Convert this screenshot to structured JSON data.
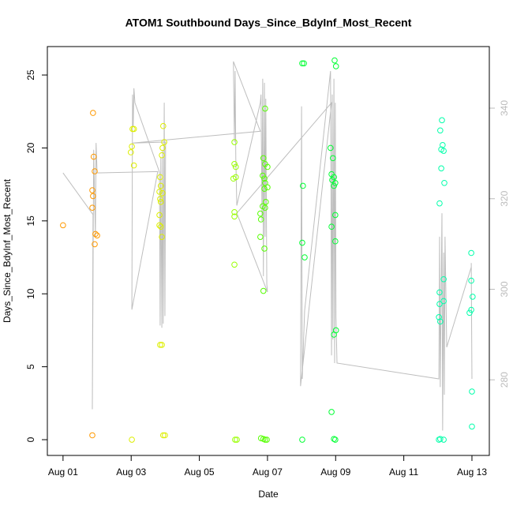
{
  "chart_data": {
    "type": "scatter",
    "title": "ATOM1 Southbound Days_Since_BdyInf_Most_Recent",
    "xlabel": "Date",
    "ylabel": "Days_Since_BdyInf_Most_Recent",
    "xlim": [
      -0.46,
      12.51
    ],
    "ylim": [
      -1.08,
      26.95
    ],
    "y2lim": [
      263.3,
      353.6
    ],
    "xticks": [
      {
        "value": 0,
        "label": "Aug 01"
      },
      {
        "value": 2,
        "label": "Aug 03"
      },
      {
        "value": 4,
        "label": "Aug 05"
      },
      {
        "value": 6,
        "label": "Aug 07"
      },
      {
        "value": 8,
        "label": "Aug 09"
      },
      {
        "value": 10,
        "label": "Aug 11"
      },
      {
        "value": 12,
        "label": "Aug 13"
      }
    ],
    "yticks": [
      0,
      5,
      10,
      15,
      20,
      25
    ],
    "y2ticks": [
      280,
      300,
      320,
      340
    ],
    "series": [
      {
        "color": "#FF9900",
        "x": [
          0,
          0.88,
          0.9,
          0.86,
          0.88,
          0.86,
          0.93,
          0.95,
          1.0,
          0.93,
          0.86
        ],
        "values": [
          14.7,
          22.4,
          19.4,
          17.1,
          16.7,
          15.9,
          18.4,
          14.1,
          14.0,
          13.4,
          0.3
        ]
      },
      {
        "color": "#DDEE00",
        "x": [
          2.04,
          2.08,
          2.02,
          1.99,
          2.08,
          2.02,
          2.94,
          2.97,
          2.92,
          2.9,
          2.85,
          2.87,
          2.83,
          2.92,
          2.85,
          2.87,
          2.83,
          2.83,
          2.87,
          2.9,
          2.85,
          2.9,
          2.94,
          2.99
        ],
        "values": [
          21.3,
          21.3,
          20.1,
          19.7,
          18.8,
          0.0,
          21.5,
          20.4,
          20.0,
          19.5,
          18.0,
          17.4,
          17.0,
          16.9,
          16.5,
          16.3,
          15.4,
          14.7,
          14.6,
          13.9,
          6.5,
          6.5,
          0.3,
          0.3
        ]
      },
      {
        "color": "#99FF00",
        "x": [
          5.03,
          5.03,
          5.07,
          5.0,
          5.07,
          5.03,
          5.03,
          5.03,
          5.05,
          5.1
        ],
        "values": [
          20.4,
          18.9,
          18.7,
          17.9,
          18.0,
          15.6,
          15.3,
          12.0,
          0.0,
          0.0
        ]
      },
      {
        "color": "#55FF00",
        "x": [
          5.93,
          5.88,
          5.93,
          6.0,
          5.86,
          5.91,
          5.93,
          6.0,
          5.91,
          5.95,
          5.86,
          5.93,
          5.79,
          5.81,
          5.79,
          5.91,
          5.88,
          5.81,
          5.88,
          5.93,
          5.98
        ],
        "values": [
          22.7,
          19.3,
          18.9,
          18.7,
          18.1,
          17.9,
          17.6,
          17.3,
          17.2,
          16.3,
          16.0,
          15.9,
          15.5,
          15.1,
          13.9,
          13.1,
          10.2,
          0.1,
          0.05,
          0.0,
          0.0
        ]
      },
      {
        "color": "#00FF33",
        "x": [
          7.02,
          7.07,
          7.04,
          7.02,
          7.09,
          7.02,
          7.97,
          8.01,
          7.85,
          7.92,
          7.88,
          7.95,
          7.9,
          7.99,
          7.95,
          7.99,
          7.88,
          7.99,
          8.01,
          7.95,
          7.88,
          7.95,
          7.99
        ],
        "values": [
          25.8,
          25.8,
          17.4,
          13.5,
          12.5,
          0.0,
          26.0,
          25.6,
          20.0,
          19.3,
          18.2,
          18.0,
          17.8,
          17.6,
          17.4,
          15.4,
          14.6,
          13.6,
          7.5,
          7.2,
          1.9,
          0.05,
          0.0
        ]
      },
      {
        "color": "#00FFAA",
        "x": [
          11.12,
          11.07,
          11.14,
          11.1,
          11.17,
          11.1,
          11.19,
          11.05,
          11.05,
          11.17,
          11.05,
          11.03,
          11.07,
          11.17,
          11.03,
          11.07,
          11.17,
          11.98,
          11.98,
          12.02,
          11.98,
          11.93,
          12.0,
          12.0
        ],
        "values": [
          21.9,
          21.2,
          20.2,
          19.9,
          19.8,
          18.6,
          17.6,
          16.2,
          10.1,
          9.5,
          9.3,
          8.4,
          8.1,
          11.0,
          0.0,
          0.05,
          0.0,
          12.8,
          10.9,
          9.8,
          8.9,
          8.7,
          3.3,
          0.9
        ]
      },
      {
        "type": "line",
        "axis": "y2",
        "color": "#BEBEBE",
        "x": [
          0.0,
          0.88,
          0.86,
          0.9,
          0.95,
          0.97,
          1.0,
          2.78,
          2.02,
          2.04,
          2.06,
          2.08,
          2.11,
          2.83,
          2.85,
          2.87,
          2.9,
          2.92,
          2.94,
          2.97,
          2.99,
          3.01,
          2.04,
          5.79,
          5.0,
          5.03,
          5.05,
          5.07,
          5.1,
          5.79,
          5.81,
          5.84,
          5.86,
          5.88,
          5.91,
          5.93,
          5.95,
          5.98,
          6.0,
          5.1,
          7.88,
          6.97,
          7.0,
          7.02,
          7.09,
          7.85,
          7.88,
          7.9,
          7.92,
          7.95,
          7.97,
          7.99,
          8.01,
          8.04,
          11.03,
          11.05,
          11.07,
          11.12,
          11.14,
          11.17,
          11.19,
          11.21,
          11.26,
          11.98,
          12.0,
          11.98
        ],
        "values": [
          325.7,
          316.5,
          273.5,
          330.8,
          311.6,
          332.3,
          325.7,
          326.0,
          295.5,
          343.0,
          336.0,
          344.4,
          341.2,
          325.9,
          292.0,
          329.0,
          291.5,
          330.8,
          292.4,
          341.2,
          294.1,
          332.5,
          332.3,
          334.9,
          350.3,
          332.5,
          348.2,
          329.0,
          318.5,
          341.2,
          343.0,
          315.1,
          346.5,
          302.9,
          345.6,
          311.6,
          342.1,
          301.1,
          299.4,
          316.8,
          341.2,
          278.6,
          340.4,
          280.2,
          295.3,
          348.2,
          285.4,
          343.0,
          288.9,
          346.5,
          283.7,
          341.2,
          294.1,
          283.7,
          280.2,
          311.6,
          278.4,
          316.8,
          268.8,
          308.1,
          276.7,
          311.6,
          287.2,
          304.9,
          280.2,
          305.8
        ]
      }
    ]
  }
}
